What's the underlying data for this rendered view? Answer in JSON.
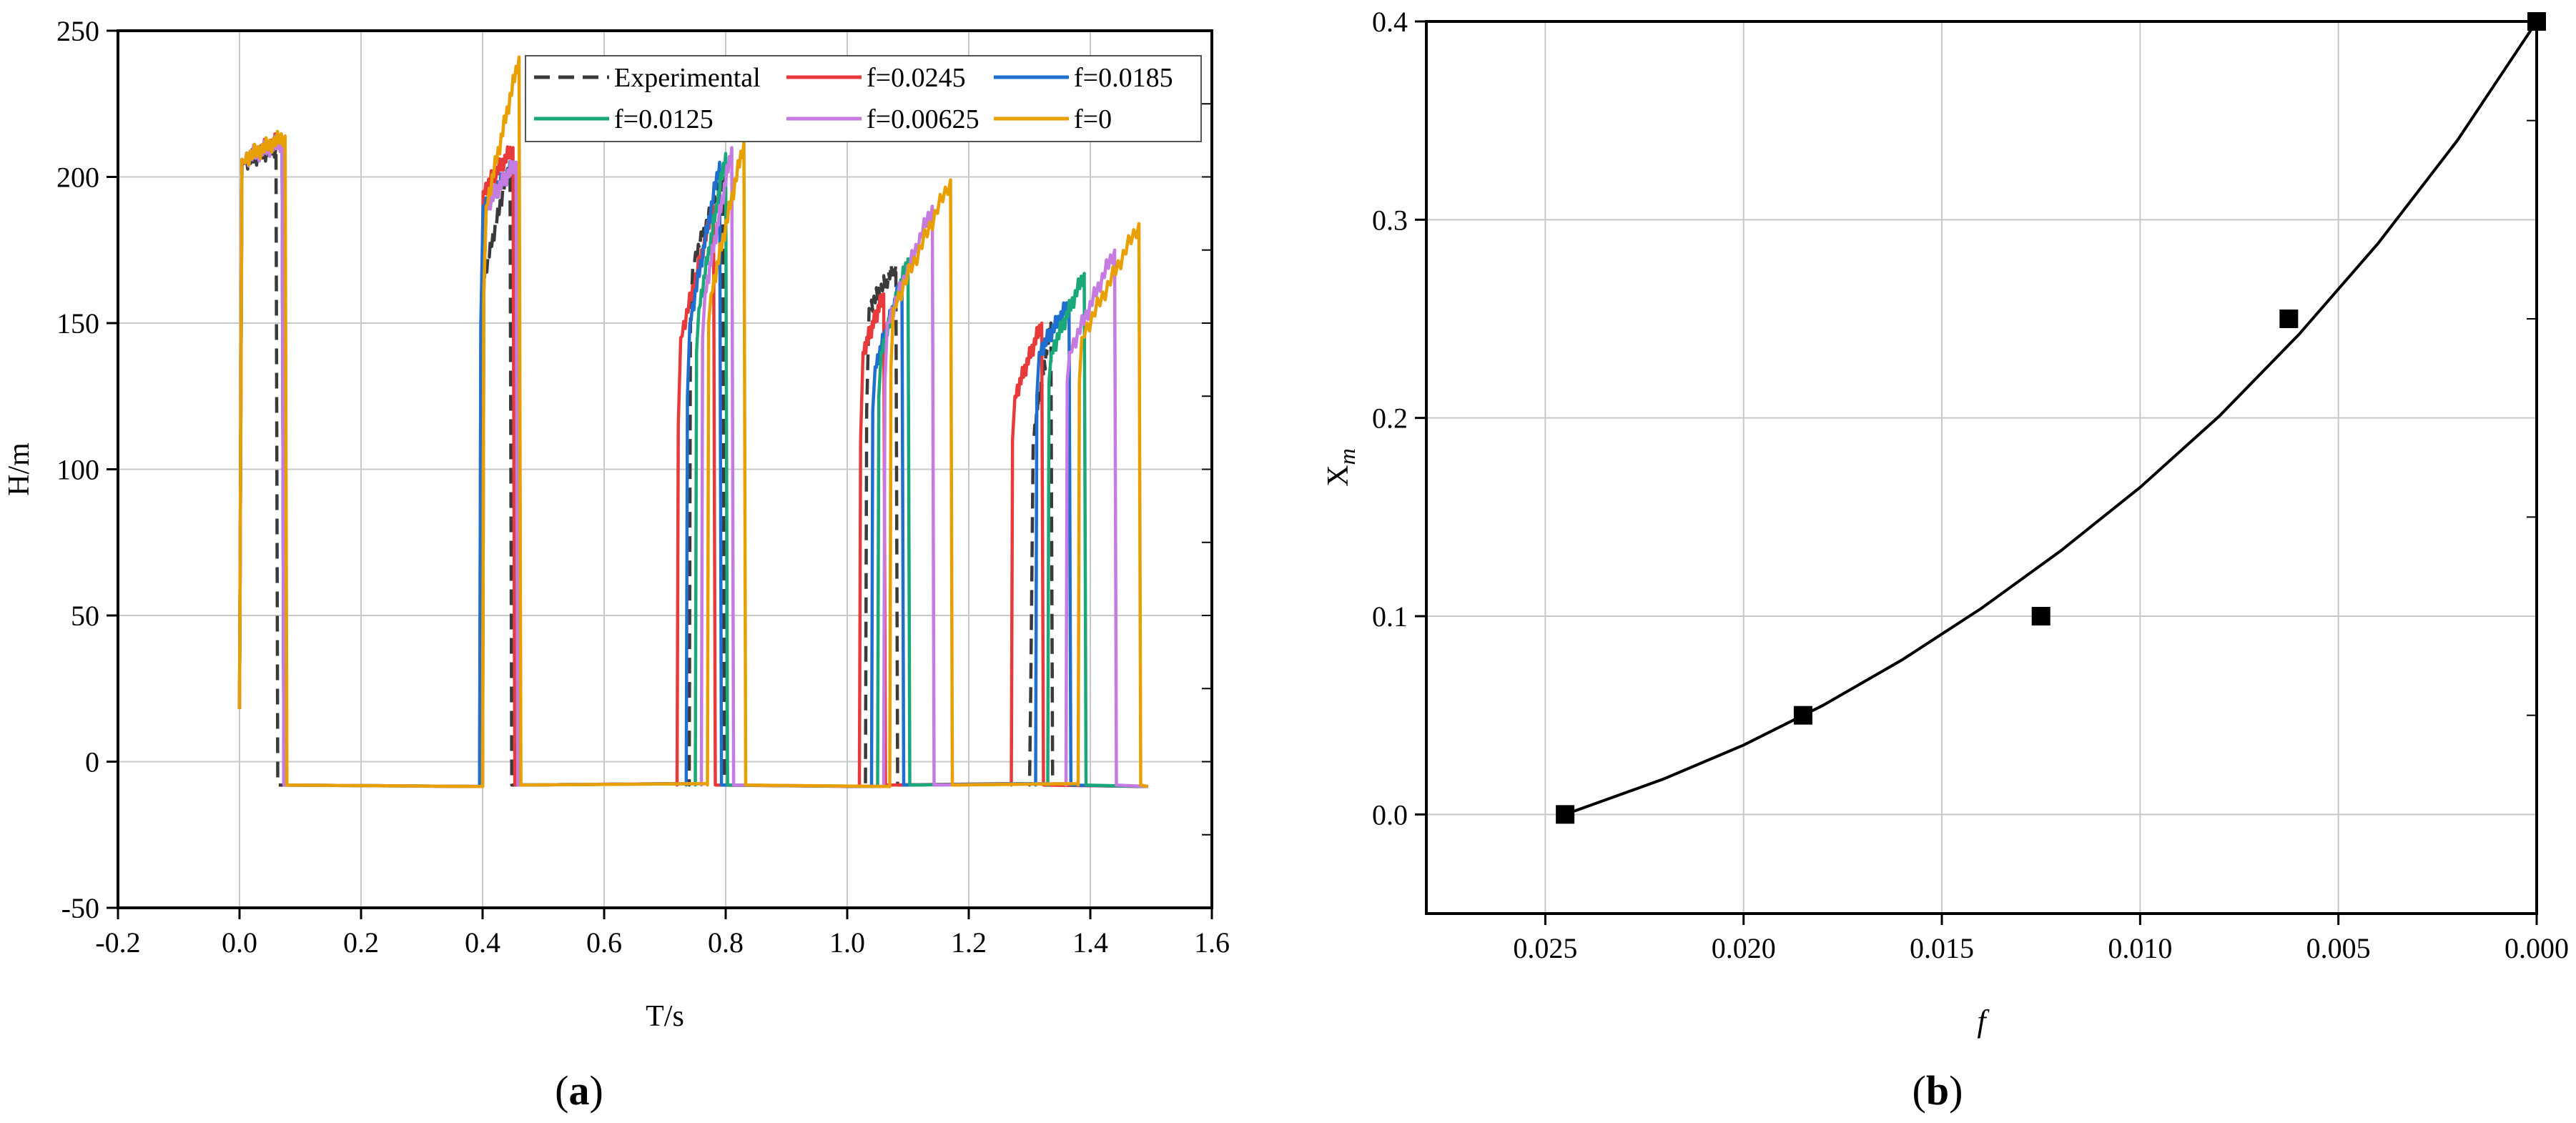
{
  "panel_labels": [
    "a",
    "b"
  ],
  "chart_data": [
    {
      "type": "line",
      "xlabel": "T/s",
      "ylabel": "H/m",
      "xlim": [
        -0.2,
        1.6
      ],
      "ylim": [
        -50,
        250
      ],
      "x_ticks": [
        "-0.2",
        "0.0",
        "0.2",
        "0.4",
        "0.6",
        "0.8",
        "1.0",
        "1.2",
        "1.4",
        "1.6"
      ],
      "y_ticks": [
        "-50",
        "0",
        "50",
        "100",
        "150",
        "200",
        "250"
      ],
      "grid": true,
      "legend_position": "top-right",
      "baseline": -8,
      "series": [
        {
          "name": "Experimental",
          "color": "#3a3a3a",
          "dash": true,
          "pulses": [
            [
              0.0,
              0.06,
              18,
              205,
              210
            ],
            [
              0.395,
              0.445,
              100,
              165,
              205
            ],
            [
              0.74,
              0.795,
              150,
              170,
              200
            ],
            [
              1.03,
              1.08,
              120,
              155,
              170
            ],
            [
              1.3,
              1.335,
              25,
              110,
              150
            ]
          ]
        },
        {
          "name": "f=0.0245",
          "color": "#e83a3a",
          "dash": false,
          "pulses": [
            [
              0.0,
              0.07,
              18,
              206,
              213
            ],
            [
              0.395,
              0.45,
              140,
              195,
              210
            ],
            [
              0.72,
              0.78,
              115,
              145,
              190
            ],
            [
              1.02,
              1.06,
              110,
              140,
              160
            ],
            [
              1.27,
              1.32,
              110,
              125,
              150
            ]
          ]
        },
        {
          "name": "f=0.0185",
          "color": "#1f6fd0",
          "dash": false,
          "pulses": [
            [
              0.0,
              0.07,
              18,
              206,
              212
            ],
            [
              0.395,
              0.455,
              150,
              190,
              205
            ],
            [
              0.735,
              0.79,
              125,
              150,
              205
            ],
            [
              1.04,
              1.09,
              120,
              135,
              165
            ],
            [
              1.31,
              1.365,
              125,
              140,
              157
            ]
          ]
        },
        {
          "name": "f=0.0125",
          "color": "#1aa878",
          "dash": false,
          "pulses": [
            [
              0.0,
              0.07,
              18,
              206,
              212
            ],
            [
              0.4,
              0.455,
              160,
              190,
              205
            ],
            [
              0.75,
              0.8,
              140,
              155,
              208
            ],
            [
              1.05,
              1.1,
              125,
              140,
              172
            ],
            [
              1.33,
              1.39,
              130,
              140,
              167
            ]
          ]
        },
        {
          "name": "f=0.00625",
          "color": "#c57be0",
          "dash": false,
          "pulses": [
            [
              0.0,
              0.07,
              18,
              206,
              212
            ],
            [
              0.4,
              0.455,
              160,
              190,
              205
            ],
            [
              0.76,
              0.81,
              145,
              160,
              210
            ],
            [
              1.06,
              1.14,
              130,
              150,
              190
            ],
            [
              1.36,
              1.44,
              130,
              140,
              175
            ]
          ]
        },
        {
          "name": "f=0",
          "color": "#e8a000",
          "dash": false,
          "pulses": [
            [
              0.0,
              0.075,
              18,
              206,
              214
            ],
            [
              0.4,
              0.46,
              160,
              190,
              241
            ],
            [
              0.77,
              0.83,
              150,
              160,
              212
            ],
            [
              1.07,
              1.17,
              135,
              155,
              199
            ],
            [
              1.38,
              1.48,
              130,
              145,
              184
            ]
          ]
        }
      ]
    },
    {
      "type": "scatter",
      "xlabel": "f",
      "ylabel": "X",
      "ylabel_sub": "m",
      "xlim": [
        0.028,
        0.0
      ],
      "ylim": [
        -0.05,
        0.4
      ],
      "x_ticks": [
        "0.025",
        "0.020",
        "0.015",
        "0.010",
        "0.005",
        "0.000"
      ],
      "y_ticks": [
        "0.0",
        "0.1",
        "0.2",
        "0.3",
        "0.4"
      ],
      "grid": true,
      "points": [
        {
          "x": 0.0245,
          "y": 0.0
        },
        {
          "x": 0.0185,
          "y": 0.05
        },
        {
          "x": 0.0125,
          "y": 0.1
        },
        {
          "x": 0.00625,
          "y": 0.25
        },
        {
          "x": 0.0,
          "y": 0.4
        }
      ],
      "fit_curve": {
        "x": [
          0.0245,
          0.022,
          0.02,
          0.018,
          0.016,
          0.014,
          0.012,
          0.01,
          0.008,
          0.006,
          0.004,
          0.002,
          0.0
        ],
        "y": [
          0.0,
          0.018,
          0.035,
          0.055,
          0.078,
          0.104,
          0.133,
          0.165,
          0.201,
          0.242,
          0.288,
          0.34,
          0.4
        ]
      }
    }
  ]
}
